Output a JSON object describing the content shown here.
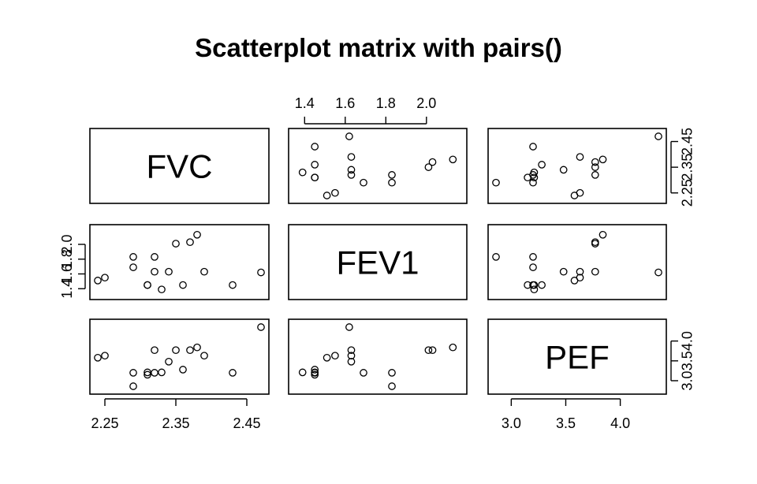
{
  "chart_data": {
    "type": "scatter",
    "title": "Scatterplot matrix with pairs()",
    "variables": [
      "FVC",
      "FEV1",
      "PEF"
    ],
    "series": [
      {
        "name": "FVC",
        "values": [
          2.43,
          2.37,
          2.38,
          2.32,
          2.29,
          2.31,
          2.25,
          2.24,
          2.35,
          2.39,
          2.47,
          2.36,
          2.34,
          2.33,
          2.31,
          2.29,
          2.32
        ]
      },
      {
        "name": "FEV1",
        "values": [
          1.45,
          2.03,
          2.13,
          1.83,
          1.83,
          1.45,
          1.55,
          1.51,
          2.01,
          1.63,
          1.62,
          1.45,
          1.63,
          1.39,
          1.45,
          1.69,
          1.63
        ]
      },
      {
        "name": "PEF",
        "values": [
          3.2,
          3.77,
          3.84,
          3.2,
          2.86,
          3.15,
          3.63,
          3.58,
          3.77,
          3.63,
          4.35,
          3.28,
          3.48,
          3.21,
          3.21,
          3.2,
          3.77
        ]
      }
    ],
    "axes": {
      "FVC": {
        "range": [
          2.24,
          2.47
        ],
        "ticks": [
          "2.25",
          "2.35",
          "2.45"
        ],
        "tick_values": [
          2.25,
          2.35,
          2.45
        ]
      },
      "FEV1": {
        "range": [
          1.36,
          2.16
        ],
        "ticks": [
          "1.4",
          "1.6",
          "1.8",
          "2.0"
        ],
        "tick_values": [
          1.4,
          1.6,
          1.8,
          2.0
        ]
      },
      "PEF": {
        "range": [
          2.86,
          4.35
        ],
        "ticks": [
          "3.0",
          "3.5",
          "4.0"
        ],
        "tick_values": [
          3.0,
          3.5,
          4.0
        ]
      }
    },
    "grid": false,
    "legend": "none"
  }
}
